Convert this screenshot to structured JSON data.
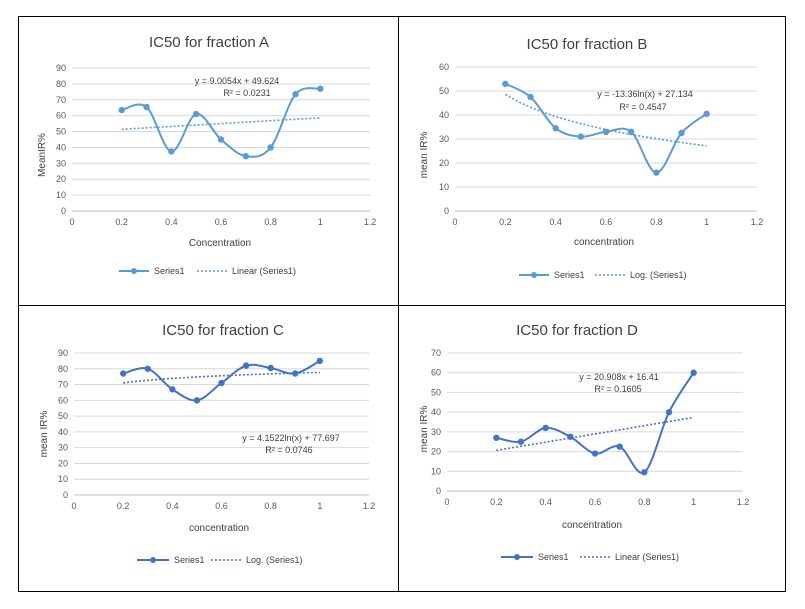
{
  "colors": {
    "series_light": "#5b9bd5",
    "series_dark": "#4472c4",
    "grid": "#d9d9d9",
    "border": "#000000"
  },
  "chart_data": [
    {
      "id": "A",
      "type": "line",
      "title": "IC50 for fraction A",
      "xlabel": "Concentration",
      "ylabel": "MeanIR%",
      "xlim": [
        0,
        1.2
      ],
      "ylim": [
        0,
        90
      ],
      "xticks": [
        "0",
        "0.2",
        "0.4",
        "0.6",
        "0.8",
        "1",
        "1.2"
      ],
      "yticks": [
        "0",
        "10",
        "20",
        "30",
        "40",
        "50",
        "60",
        "70",
        "80",
        "90"
      ],
      "x": [
        0.2,
        0.3,
        0.4,
        0.5,
        0.6,
        0.7,
        0.8,
        0.9,
        1.0
      ],
      "series": [
        {
          "name": "Series1",
          "values": [
            63.5,
            65.5,
            37.5,
            61,
            45,
            34.5,
            40,
            73.5,
            77
          ]
        }
      ],
      "trendline": {
        "name": "Linear (Series1)",
        "kind": "linear",
        "slope": 9.0054,
        "intercept": 49.624
      },
      "equation": "y = 9.0054x + 49.624",
      "r2": "R² = 0.0231",
      "legend": [
        "Series1",
        "Linear (Series1)"
      ],
      "legend_position": "bottom",
      "grid": true,
      "series_color": "#5b9bd5"
    },
    {
      "id": "B",
      "type": "line",
      "title": "IC50 for fraction B",
      "xlabel": "concentration",
      "ylabel": "mean IR%",
      "xlim": [
        0,
        1.2
      ],
      "ylim": [
        0,
        60
      ],
      "xticks": [
        "0",
        "0.2",
        "0.4",
        "0.6",
        "0.8",
        "1",
        "1.2"
      ],
      "yticks": [
        "0",
        "10",
        "20",
        "30",
        "40",
        "50",
        "60"
      ],
      "x": [
        0.2,
        0.3,
        0.4,
        0.5,
        0.6,
        0.7,
        0.8,
        0.9,
        1.0
      ],
      "series": [
        {
          "name": "Series1",
          "values": [
            53,
            47.5,
            34.5,
            31,
            33,
            33,
            16,
            32.5,
            40.5
          ]
        }
      ],
      "trendline": {
        "name": "Log. (Series1)",
        "kind": "log",
        "a": -13.36,
        "b": 27.134
      },
      "equation": "y = -13.36ln(x) + 27.134",
      "r2": "R² = 0.4547",
      "legend": [
        "Series1",
        "Log. (Series1)"
      ],
      "legend_position": "bottom",
      "grid": true,
      "series_color": "#5b9bd5"
    },
    {
      "id": "C",
      "type": "line",
      "title": "IC50 for fraction C",
      "xlabel": "concentration",
      "ylabel": "mean IR%",
      "xlim": [
        0,
        1.2
      ],
      "ylim": [
        0,
        90
      ],
      "xticks": [
        "0",
        "0.2",
        "0.4",
        "0.6",
        "0.8",
        "1",
        "1.2"
      ],
      "yticks": [
        "0",
        "10",
        "20",
        "30",
        "40",
        "50",
        "60",
        "70",
        "80",
        "90"
      ],
      "x": [
        0.2,
        0.3,
        0.4,
        0.5,
        0.6,
        0.7,
        0.8,
        0.9,
        1.0
      ],
      "series": [
        {
          "name": "Series1",
          "values": [
            77,
            80,
            67,
            60,
            71,
            82,
            80.5,
            77,
            85
          ]
        }
      ],
      "trendline": {
        "name": "Log. (Series1)",
        "kind": "log",
        "a": 4.1522,
        "b": 77.697
      },
      "equation": "y = 4.1522ln(x) + 77.697",
      "r2": "R² = 0.0746",
      "legend": [
        "Series1",
        "Log. (Series1)"
      ],
      "legend_position": "bottom",
      "grid": true,
      "series_color": "#4472c4"
    },
    {
      "id": "D",
      "type": "line",
      "title": "IC50 for fraction D",
      "xlabel": "concentration",
      "ylabel": "mean IR%",
      "xlim": [
        0,
        1.2
      ],
      "ylim": [
        0,
        70
      ],
      "xticks": [
        "0",
        "0.2",
        "0.4",
        "0.6",
        "0.8",
        "1",
        "1.2"
      ],
      "yticks": [
        "0",
        "10",
        "20",
        "30",
        "40",
        "50",
        "60",
        "70"
      ],
      "x": [
        0.2,
        0.3,
        0.4,
        0.5,
        0.6,
        0.7,
        0.8,
        0.9,
        1.0
      ],
      "series": [
        {
          "name": "Series1",
          "values": [
            27,
            25,
            32,
            27.5,
            19,
            22.5,
            9.5,
            40,
            60
          ]
        }
      ],
      "trendline": {
        "name": "Linear (Series1)",
        "kind": "linear",
        "slope": 20.908,
        "intercept": 16.41
      },
      "equation": "y = 20.908x + 16.41",
      "r2": "R² = 0.1605",
      "legend": [
        "Series1",
        "Linear (Series1)"
      ],
      "legend_position": "bottom",
      "grid": true,
      "series_color": "#4472c4"
    }
  ]
}
